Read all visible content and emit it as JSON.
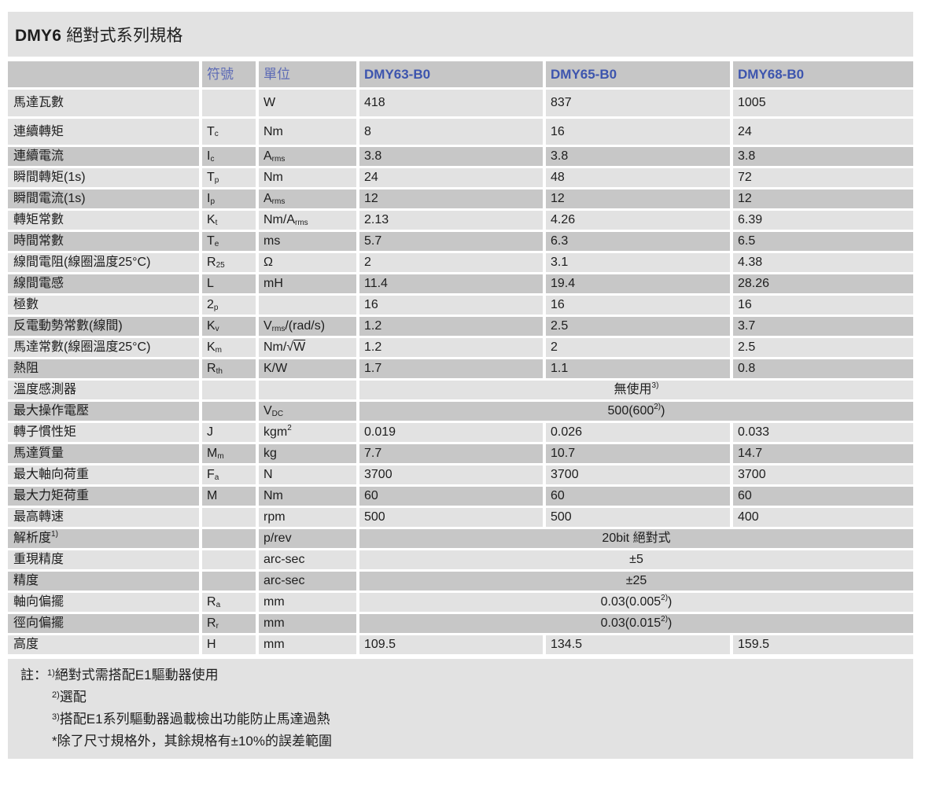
{
  "title": {
    "model": "DMY6",
    "suffix": " 絕對式系列規格"
  },
  "colors": {
    "row_light": "#e2e2e2",
    "row_dark": "#c7c7c7",
    "header_bg": "#c6c6c6",
    "header_label_blue": "#5c6ab5",
    "model_blue": "#3d55ae",
    "text": "#1d1d1d"
  },
  "table": {
    "header": {
      "symbol": "符號",
      "unit": "單位",
      "models": [
        "DMY63-B0",
        "DMY65-B0",
        "DMY68-B0"
      ]
    },
    "rows": [
      {
        "shade": "light",
        "label": "馬達瓦數",
        "symbol": [],
        "unit": [
          {
            "t": "W"
          }
        ],
        "values": [
          "418",
          "837",
          "1005"
        ]
      },
      {
        "shade": "light",
        "label": "連續轉矩",
        "symbol": [
          {
            "t": "T"
          },
          {
            "sub": "c"
          }
        ],
        "unit": [
          {
            "t": "Nm"
          }
        ],
        "values": [
          "8",
          "16",
          "24"
        ]
      },
      {
        "shade": "dark",
        "label": "連續電流",
        "symbol": [
          {
            "t": "I"
          },
          {
            "sub": "c"
          }
        ],
        "unit": [
          {
            "t": "A"
          },
          {
            "sub": "rms"
          }
        ],
        "values": [
          "3.8",
          "3.8",
          "3.8"
        ]
      },
      {
        "shade": "light",
        "label": "瞬間轉矩(1s)",
        "symbol": [
          {
            "t": "T"
          },
          {
            "sub": "p"
          }
        ],
        "unit": [
          {
            "t": "Nm"
          }
        ],
        "values": [
          "24",
          "48",
          "72"
        ]
      },
      {
        "shade": "dark",
        "label": "瞬間電流(1s)",
        "symbol": [
          {
            "t": "I"
          },
          {
            "sub": "p"
          }
        ],
        "unit": [
          {
            "t": "A"
          },
          {
            "sub": "rms"
          }
        ],
        "values": [
          "12",
          "12",
          "12"
        ]
      },
      {
        "shade": "light",
        "label": "轉矩常數",
        "symbol": [
          {
            "t": "K"
          },
          {
            "sub": "t"
          }
        ],
        "unit": [
          {
            "t": "Nm/A"
          },
          {
            "sub": "rms"
          }
        ],
        "values": [
          "2.13",
          "4.26",
          "6.39"
        ]
      },
      {
        "shade": "dark",
        "label": "時間常數",
        "symbol": [
          {
            "t": "T"
          },
          {
            "sub": "e"
          }
        ],
        "unit": [
          {
            "t": "ms"
          }
        ],
        "values": [
          "5.7",
          "6.3",
          "6.5"
        ]
      },
      {
        "shade": "light",
        "label": "線間電阻(線圈溫度25°C)",
        "symbol": [
          {
            "t": "R"
          },
          {
            "sub": "25"
          }
        ],
        "unit": [
          {
            "t": "Ω"
          }
        ],
        "values": [
          "2",
          "3.1",
          "4.38"
        ]
      },
      {
        "shade": "dark",
        "label": "線間電感",
        "symbol": [
          {
            "t": "L"
          }
        ],
        "unit": [
          {
            "t": "mH"
          }
        ],
        "values": [
          "11.4",
          "19.4",
          "28.26"
        ]
      },
      {
        "shade": "light",
        "label": "極數",
        "symbol": [
          {
            "t": "2"
          },
          {
            "sub": "p"
          }
        ],
        "unit": [],
        "values": [
          "16",
          "16",
          "16"
        ]
      },
      {
        "shade": "dark",
        "label": "反電動勢常數(線間)",
        "symbol": [
          {
            "t": "K"
          },
          {
            "sub": "v"
          }
        ],
        "unit": [
          {
            "t": "V"
          },
          {
            "sub": "rms"
          },
          {
            "t": "/(rad/s)"
          }
        ],
        "values": [
          "1.2",
          "2.5",
          "3.7"
        ]
      },
      {
        "shade": "light",
        "label": "馬達常數(線圈溫度25°C)",
        "symbol": [
          {
            "t": "K"
          },
          {
            "sub": "m"
          }
        ],
        "unit": [
          {
            "t": "Nm/√"
          },
          {
            "ov": "W"
          }
        ],
        "values": [
          "1.2",
          "2",
          "2.5"
        ]
      },
      {
        "shade": "dark",
        "label": "熱阻",
        "symbol": [
          {
            "t": "R"
          },
          {
            "sub": "th"
          }
        ],
        "unit": [
          {
            "t": "K/W"
          }
        ],
        "values": [
          "1.7",
          "1.1",
          "0.8"
        ]
      },
      {
        "shade": "light",
        "label": "溫度感測器",
        "symbol": [],
        "unit": [],
        "span": [
          {
            "t": "無使用"
          },
          {
            "sup": "3)"
          }
        ]
      },
      {
        "shade": "dark",
        "label": "最大操作電壓",
        "symbol": [],
        "unit": [
          {
            "t": "V"
          },
          {
            "sub": "DC"
          }
        ],
        "span": [
          {
            "t": "500(600"
          },
          {
            "sup": "2)"
          },
          {
            "t": ")"
          }
        ]
      },
      {
        "shade": "light",
        "label": "轉子慣性矩",
        "symbol": [
          {
            "t": "J"
          }
        ],
        "unit": [
          {
            "t": "kgm"
          },
          {
            "sup": "2"
          }
        ],
        "values": [
          "0.019",
          "0.026",
          "0.033"
        ]
      },
      {
        "shade": "dark",
        "label": "馬達質量",
        "symbol": [
          {
            "t": "M"
          },
          {
            "sub": "m"
          }
        ],
        "unit": [
          {
            "t": "kg"
          }
        ],
        "values": [
          "7.7",
          "10.7",
          "14.7"
        ]
      },
      {
        "shade": "light",
        "label": "最大軸向荷重",
        "symbol": [
          {
            "t": "F"
          },
          {
            "sub": "a"
          }
        ],
        "unit": [
          {
            "t": "N"
          }
        ],
        "values": [
          "3700",
          "3700",
          "3700"
        ]
      },
      {
        "shade": "dark",
        "label": "最大力矩荷重",
        "symbol": [
          {
            "t": "M"
          }
        ],
        "unit": [
          {
            "t": "Nm"
          }
        ],
        "values": [
          "60",
          "60",
          "60"
        ]
      },
      {
        "shade": "light",
        "label": "最高轉速",
        "symbol": [],
        "unit": [
          {
            "t": "rpm"
          }
        ],
        "values": [
          "500",
          "500",
          "400"
        ]
      },
      {
        "shade": "dark",
        "label": [
          {
            "t": "解析度"
          },
          {
            "sup": "1)"
          }
        ],
        "symbol": [],
        "unit": [
          {
            "t": "p/rev"
          }
        ],
        "span": [
          {
            "t": "20bit 絕對式"
          }
        ]
      },
      {
        "shade": "light",
        "label": "重現精度",
        "symbol": [],
        "unit": [
          {
            "t": "arc-sec"
          }
        ],
        "span": [
          {
            "t": "±5"
          }
        ]
      },
      {
        "shade": "dark",
        "label": "精度",
        "symbol": [],
        "unit": [
          {
            "t": "arc-sec"
          }
        ],
        "span": [
          {
            "t": "±25"
          }
        ]
      },
      {
        "shade": "light",
        "label": "軸向偏擺",
        "symbol": [
          {
            "t": "R"
          },
          {
            "sub": "a"
          }
        ],
        "unit": [
          {
            "t": "mm"
          }
        ],
        "span": [
          {
            "t": "0.03(0.005"
          },
          {
            "sup": "2)"
          },
          {
            "t": ")"
          }
        ]
      },
      {
        "shade": "dark",
        "label": "徑向偏擺",
        "symbol": [
          {
            "t": "R"
          },
          {
            "sub": "r"
          }
        ],
        "unit": [
          {
            "t": "mm"
          }
        ],
        "span": [
          {
            "t": "0.03(0.015"
          },
          {
            "sup": "2)"
          },
          {
            "t": ")"
          }
        ]
      },
      {
        "shade": "light",
        "label": "高度",
        "symbol": [
          {
            "t": "H"
          }
        ],
        "unit": [
          {
            "t": "mm"
          }
        ],
        "values": [
          "109.5",
          "134.5",
          "159.5"
        ]
      }
    ]
  },
  "notes": {
    "prefix": "註：",
    "lines": [
      {
        "marker": "1)",
        "text": "絕對式需搭配E1驅動器使用"
      },
      {
        "marker": "2)",
        "text": "選配"
      },
      {
        "marker": "3)",
        "text": "搭配E1系列驅動器過載檢出功能防止馬達過熱"
      },
      {
        "marker": "",
        "text": "*除了尺寸規格外，其餘規格有±10%的誤差範圍"
      }
    ]
  }
}
